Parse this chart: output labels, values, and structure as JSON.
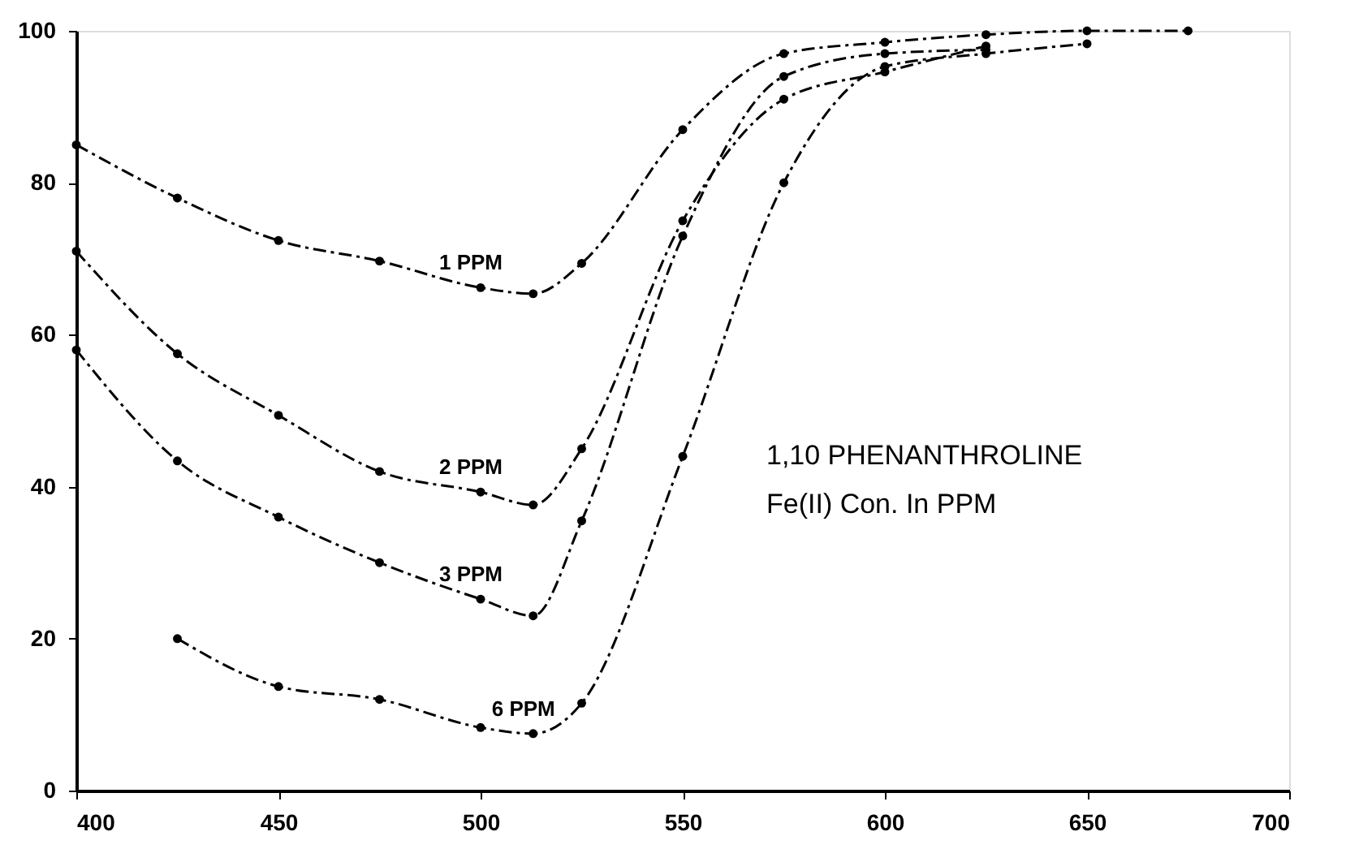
{
  "chart_data": {
    "type": "line",
    "marker": "circle",
    "line_style": "dashed",
    "grid": false,
    "legend": false,
    "xlim": [
      400,
      700
    ],
    "xticks": [
      400,
      450,
      500,
      550,
      600,
      650,
      700
    ],
    "ylim": [
      0,
      100
    ],
    "yticks": [
      0,
      20,
      40,
      60,
      80,
      100
    ],
    "annotations": [
      "1,10 PHENANTHROLINE",
      "Fe(II) Con. In PPM"
    ],
    "series": [
      {
        "name": "1 PPM",
        "color": "#000000",
        "x": [
          400,
          425,
          450,
          475,
          500,
          513,
          525,
          550,
          575,
          600,
          625,
          650,
          675
        ],
        "values": [
          85,
          78,
          72.4,
          69.7,
          66.2,
          65.4,
          69.4,
          87,
          97,
          98.5,
          99.5,
          100,
          100
        ]
      },
      {
        "name": "2 PPM",
        "color": "#000000",
        "x": [
          400,
          425,
          450,
          475,
          500,
          513,
          525,
          550,
          575,
          600,
          625
        ],
        "values": [
          71,
          57.5,
          49.4,
          42,
          39.3,
          37.6,
          45,
          75,
          91,
          94.6,
          98
        ]
      },
      {
        "name": "3 PPM",
        "color": "#000000",
        "x": [
          400,
          425,
          450,
          475,
          500,
          513,
          525,
          550,
          575,
          600,
          625
        ],
        "values": [
          58,
          43.4,
          36,
          30,
          25.2,
          23,
          35.5,
          73,
          94,
          97,
          97.5
        ]
      },
      {
        "name": "6 PPM",
        "color": "#000000",
        "x": [
          425,
          450,
          475,
          500,
          513,
          525,
          550,
          575,
          600,
          625,
          650
        ],
        "values": [
          20,
          13.7,
          12,
          8.3,
          7.5,
          11.5,
          44,
          80,
          95.3,
          97,
          98.3
        ]
      }
    ]
  }
}
